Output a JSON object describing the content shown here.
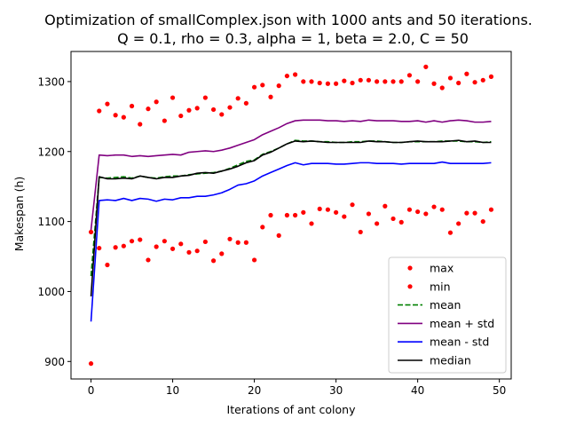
{
  "chart_data": {
    "type": "line",
    "title": "Optimization of smallComplex.json with 1000 ants and 50 iterations.",
    "subtitle": "Q = 0.1, rho = 0.3, alpha = 1, beta = 2.0, C = 50",
    "xlabel": "Iterations of ant colony",
    "ylabel": "Makespan (h)",
    "xlim": [
      -2.45,
      51.45
    ],
    "ylim": [
      875,
      1343
    ],
    "xticks": [
      0,
      10,
      20,
      30,
      40,
      50
    ],
    "yticks": [
      900,
      1000,
      1100,
      1200,
      1300
    ],
    "grid": false,
    "legend_position": "lower-right",
    "x": [
      0,
      1,
      2,
      3,
      4,
      5,
      6,
      7,
      8,
      9,
      10,
      11,
      12,
      13,
      14,
      15,
      16,
      17,
      18,
      19,
      20,
      21,
      22,
      23,
      24,
      25,
      26,
      27,
      28,
      29,
      30,
      31,
      32,
      33,
      34,
      35,
      36,
      37,
      38,
      39,
      40,
      41,
      42,
      43,
      44,
      45,
      46,
      47,
      48,
      49
    ],
    "series": [
      {
        "name": "max",
        "style": "points",
        "color": "#ff0000",
        "values": [
          1085,
          1258,
          1268,
          1252,
          1249,
          1265,
          1239,
          1261,
          1271,
          1244,
          1277,
          1251,
          1259,
          1262,
          1277,
          1260,
          1253,
          1263,
          1276,
          1269,
          1292,
          1295,
          1278,
          1294,
          1308,
          1310,
          1300,
          1300,
          1298,
          1297,
          1297,
          1301,
          1298,
          1302,
          1302,
          1300,
          1300,
          1300,
          1300,
          1309,
          1300,
          1321,
          1297,
          1291,
          1305,
          1298,
          1311,
          1299,
          1302,
          1307
        ]
      },
      {
        "name": "min",
        "style": "points",
        "color": "#ff0000",
        "values": [
          897,
          1062,
          1038,
          1063,
          1065,
          1072,
          1074,
          1045,
          1064,
          1072,
          1061,
          1068,
          1056,
          1058,
          1071,
          1044,
          1054,
          1075,
          1070,
          1070,
          1045,
          1092,
          1109,
          1080,
          1109,
          1109,
          1113,
          1097,
          1118,
          1117,
          1113,
          1107,
          1124,
          1085,
          1111,
          1097,
          1122,
          1104,
          1099,
          1117,
          1114,
          1111,
          1121,
          1117,
          1084,
          1097,
          1112,
          1112,
          1100,
          1117
        ]
      },
      {
        "name": "mean",
        "style": "dashed",
        "color": "#008000",
        "values": [
          1022,
          1163,
          1162,
          1163,
          1164,
          1162,
          1165,
          1163,
          1162,
          1164,
          1165,
          1165,
          1167,
          1168,
          1169,
          1170,
          1172,
          1176,
          1181,
          1186,
          1188,
          1196,
          1200,
          1205,
          1211,
          1216,
          1215,
          1215,
          1214,
          1214,
          1213,
          1213,
          1214,
          1214,
          1215,
          1215,
          1214,
          1213,
          1213,
          1214,
          1214,
          1214,
          1214,
          1215,
          1215,
          1215,
          1214,
          1214,
          1213,
          1214
        ]
      },
      {
        "name": "mean + std",
        "style": "solid",
        "color": "#800080",
        "values": [
          1088,
          1195,
          1194,
          1195,
          1195,
          1193,
          1194,
          1193,
          1194,
          1195,
          1196,
          1195,
          1199,
          1200,
          1201,
          1200,
          1202,
          1205,
          1209,
          1213,
          1217,
          1224,
          1229,
          1234,
          1240,
          1244,
          1245,
          1245,
          1245,
          1244,
          1244,
          1243,
          1244,
          1243,
          1245,
          1244,
          1244,
          1244,
          1243,
          1243,
          1244,
          1242,
          1244,
          1242,
          1244,
          1245,
          1244,
          1242,
          1242,
          1243
        ]
      },
      {
        "name": "mean - std",
        "style": "solid",
        "color": "#0000ff",
        "values": [
          957,
          1130,
          1131,
          1130,
          1133,
          1130,
          1133,
          1132,
          1129,
          1132,
          1131,
          1134,
          1134,
          1136,
          1136,
          1138,
          1141,
          1146,
          1152,
          1154,
          1158,
          1165,
          1170,
          1175,
          1180,
          1184,
          1181,
          1183,
          1183,
          1183,
          1182,
          1182,
          1183,
          1184,
          1184,
          1183,
          1183,
          1183,
          1182,
          1183,
          1183,
          1183,
          1183,
          1185,
          1183,
          1183,
          1183,
          1183,
          1183,
          1184
        ]
      },
      {
        "name": "median",
        "style": "solid",
        "color": "#000000",
        "values": [
          993,
          1164,
          1161,
          1161,
          1162,
          1161,
          1165,
          1163,
          1161,
          1163,
          1163,
          1165,
          1166,
          1169,
          1170,
          1169,
          1172,
          1175,
          1179,
          1184,
          1187,
          1195,
          1199,
          1205,
          1211,
          1215,
          1214,
          1215,
          1214,
          1213,
          1213,
          1213,
          1213,
          1213,
          1215,
          1214,
          1214,
          1213,
          1213,
          1214,
          1215,
          1214,
          1214,
          1214,
          1215,
          1216,
          1214,
          1215,
          1213,
          1213
        ]
      }
    ]
  }
}
